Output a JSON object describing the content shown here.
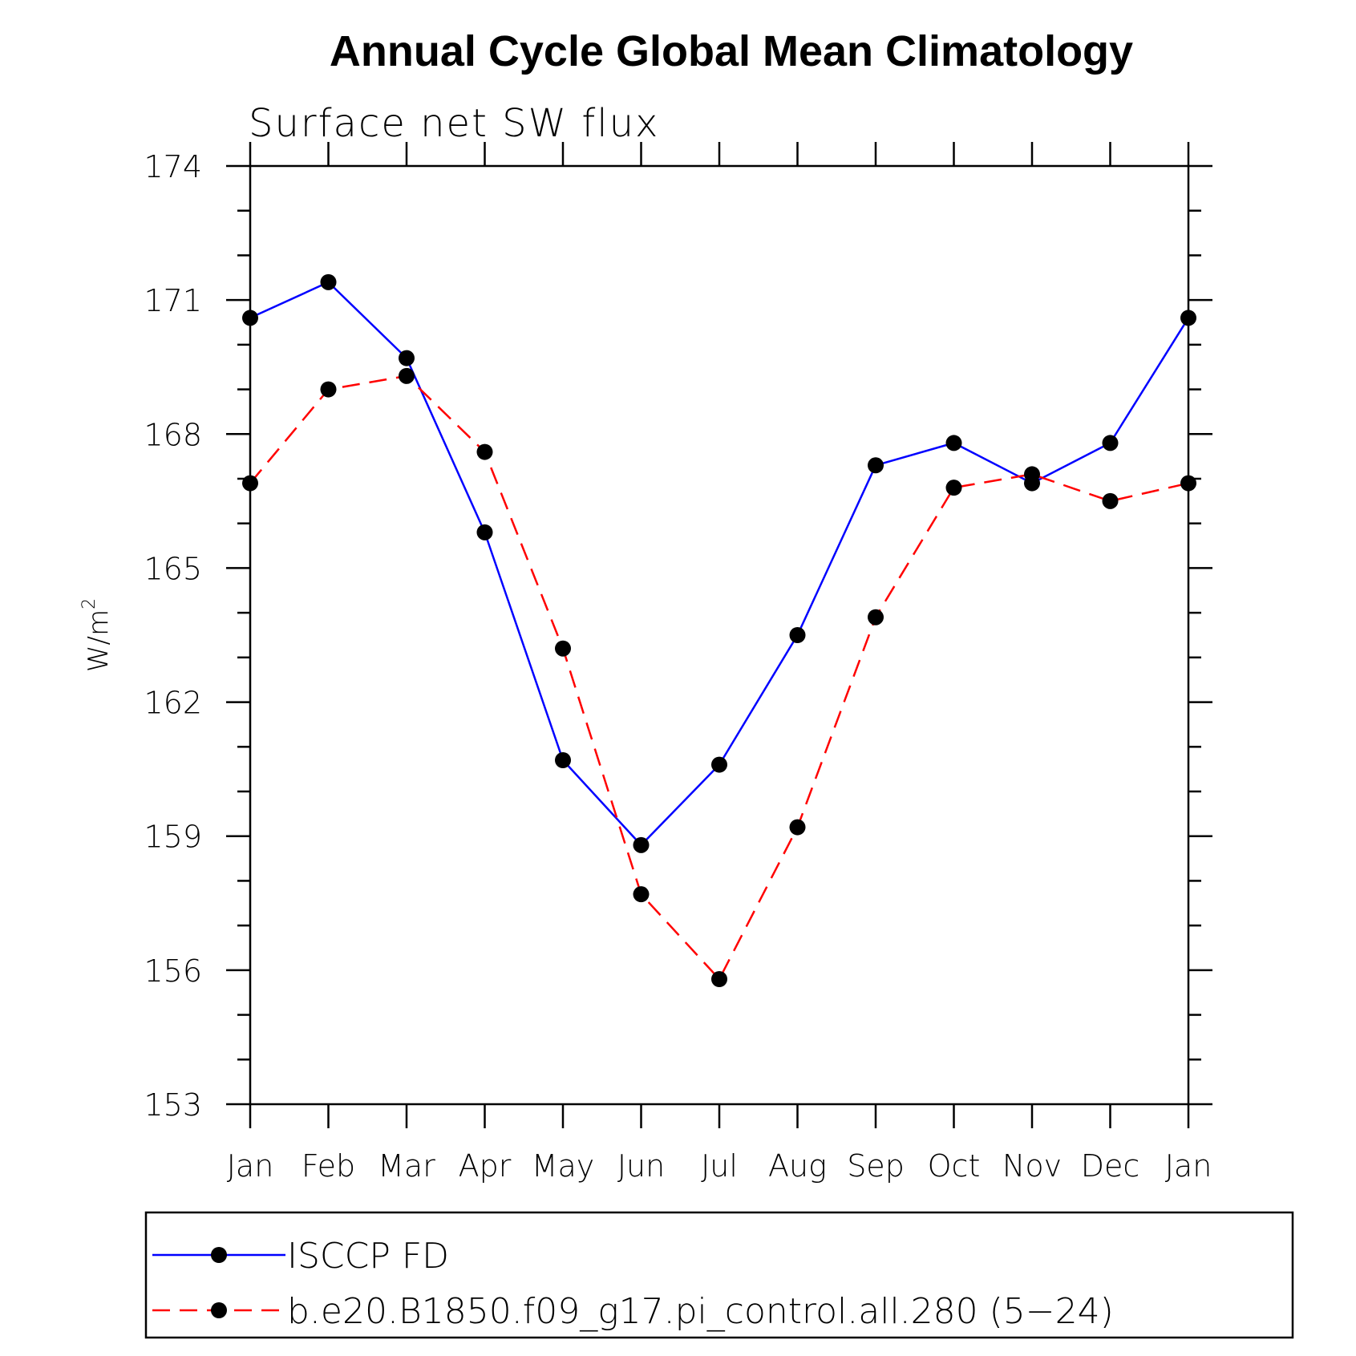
{
  "chart_data": {
    "type": "line",
    "title": "Annual Cycle Global Mean Climatology",
    "subtitle": "Surface net SW flux",
    "ylabel_base": "W/m",
    "ylabel_sup": "2",
    "categories": [
      "Jan",
      "Feb",
      "Mar",
      "Apr",
      "May",
      "Jun",
      "Jul",
      "Aug",
      "Sep",
      "Oct",
      "Nov",
      "Dec",
      "Jan"
    ],
    "ylim": [
      153,
      174
    ],
    "yticks": [
      153,
      156,
      159,
      162,
      165,
      168,
      171,
      174
    ],
    "series": [
      {
        "name": "ISCCP FD",
        "color": "#0000ff",
        "dash": "solid",
        "values": [
          170.6,
          171.4,
          169.7,
          165.8,
          160.7,
          158.8,
          160.6,
          163.5,
          167.3,
          167.8,
          166.9,
          167.8,
          170.6
        ]
      },
      {
        "name": "b.e20.B1850.f09_g17.pi_control.all.280 (5−24)",
        "color": "#ff0000",
        "dash": "dashed",
        "values": [
          166.9,
          169.0,
          169.3,
          167.6,
          163.2,
          157.7,
          155.8,
          159.2,
          163.9,
          166.8,
          167.1,
          166.5,
          166.9
        ]
      }
    ],
    "grid": false,
    "legend_position": "bottom"
  }
}
